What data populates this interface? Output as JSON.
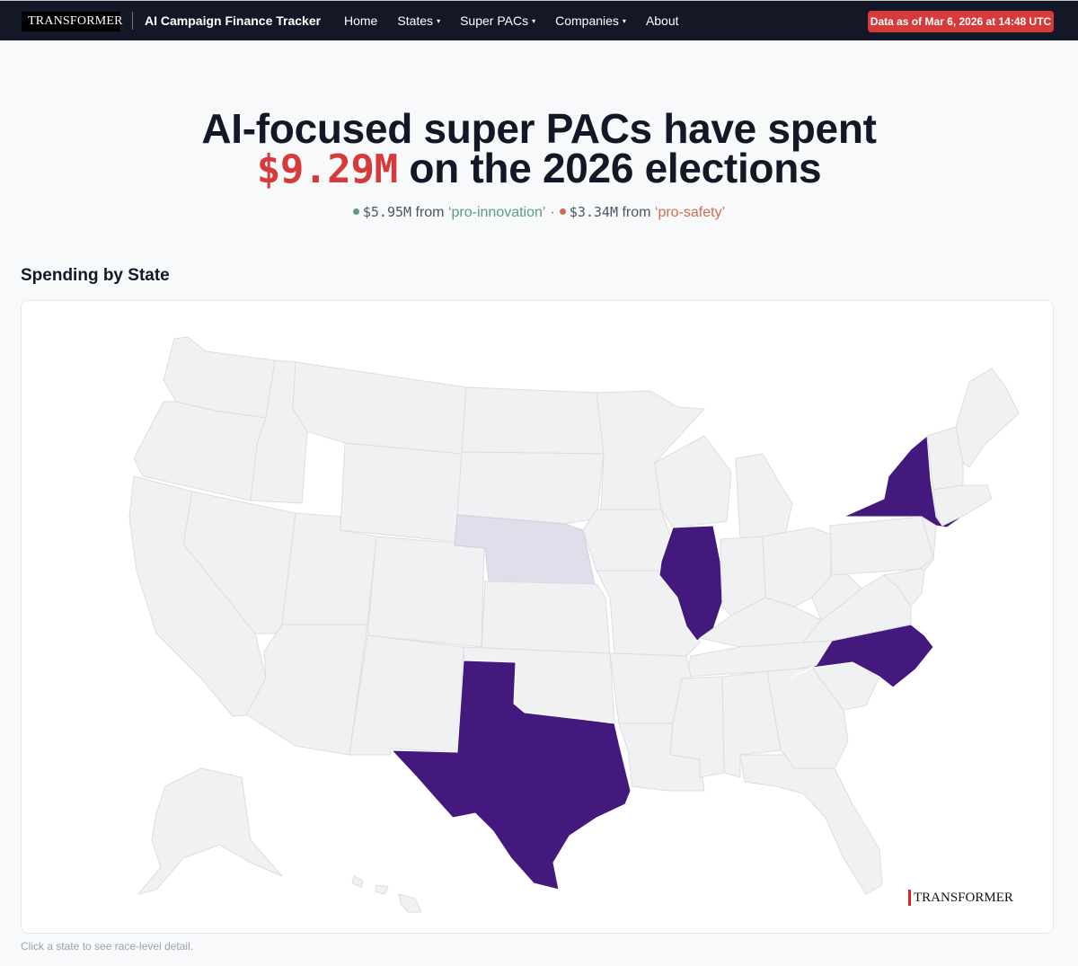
{
  "nav": {
    "logo_text": "TRANSFORMER",
    "site_title": "AI Campaign Finance Tracker",
    "menu": [
      {
        "label": "Home",
        "has_caret": false
      },
      {
        "label": "States",
        "has_caret": true
      },
      {
        "label": "Super PACs",
        "has_caret": true
      },
      {
        "label": "Companies",
        "has_caret": true
      },
      {
        "label": "About",
        "has_caret": false
      }
    ],
    "caret_icon": "▾",
    "data_badge": "Data as of Mar 6, 2026 at 14:48 UTC"
  },
  "hero": {
    "line1": "AI-focused super PACs have spent",
    "amount": "$9.29M",
    "line2_rest": " on the 2026 elections",
    "breakdown": {
      "innovation_amount": "$5.95M",
      "from_text": "from",
      "innovation_label": "‘pro-innovation’",
      "separator": "·",
      "safety_amount": "$3.34M",
      "safety_label": "‘pro-safety’",
      "innovation_color": "#5a9a86",
      "safety_color": "#d06c4c"
    }
  },
  "map_section": {
    "title": "Spending by State",
    "highlighted_states": [
      "NY",
      "IL",
      "TX",
      "NC"
    ],
    "low_states": [
      "NE"
    ],
    "highlight_color": "#44197d",
    "low_color": "#dfdeea",
    "base_color": "#f0f1f3",
    "watermark": "TRANSFORMER",
    "footnote": "Click a state to see race-level detail."
  }
}
